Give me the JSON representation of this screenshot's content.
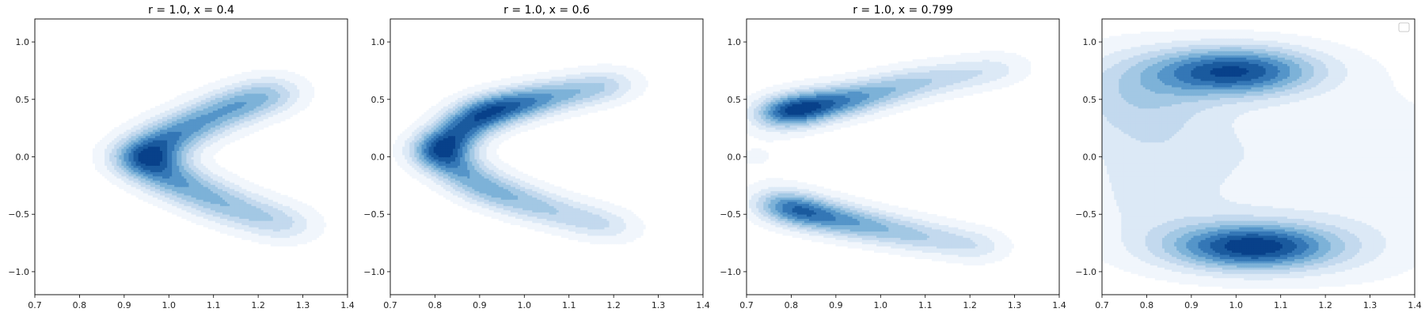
{
  "figure": {
    "background": "#ffffff",
    "colormap": [
      "#f1f6fc",
      "#dce9f6",
      "#c3d9ee",
      "#a3c8e4",
      "#7db2d8",
      "#5595c9",
      "#3477b6",
      "#1a5a9e",
      "#08418a"
    ]
  },
  "chart_data": [
    {
      "type": "kde-contour",
      "title": "r = 1.0, x = 0.4",
      "xlim": [
        0.7,
        1.4
      ],
      "ylim": [
        -1.2,
        1.2
      ],
      "xticks": [
        0.7,
        0.8,
        0.9,
        1.0,
        1.1,
        1.2,
        1.3,
        1.4
      ],
      "yticks": [
        -1.0,
        -0.5,
        0.0,
        0.5,
        1.0
      ],
      "xticklabels": [
        "0.7",
        "0.8",
        "0.9",
        "1.0",
        "1.1",
        "1.2",
        "1.3",
        "1.4"
      ],
      "yticklabels": [
        "−1.0",
        "−0.5",
        "0.0",
        "0.5",
        "1.0"
      ],
      "legend": false,
      "density_peaks": [
        {
          "path": [
            [
              0.93,
              0.0
            ],
            [
              1.02,
              0.22
            ],
            [
              1.13,
              0.42
            ],
            [
              1.22,
              0.54
            ],
            [
              1.26,
              0.6
            ]
          ],
          "sigma": 0.05,
          "weights": [
            1.0,
            0.85,
            0.7,
            0.4,
            0.15
          ]
        },
        {
          "path": [
            [
              0.93,
              0.0
            ],
            [
              1.02,
              -0.22
            ],
            [
              1.13,
              -0.42
            ],
            [
              1.24,
              -0.56
            ],
            [
              1.3,
              -0.63
            ]
          ],
          "sigma": 0.05,
          "weights": [
            1.0,
            0.75,
            0.6,
            0.35,
            0.15
          ]
        }
      ]
    },
    {
      "type": "kde-contour",
      "title": "r = 1.0, x = 0.6",
      "xlim": [
        0.7,
        1.4
      ],
      "ylim": [
        -1.2,
        1.2
      ],
      "xticks": [
        0.7,
        0.8,
        0.9,
        1.0,
        1.1,
        1.2,
        1.3,
        1.4
      ],
      "yticks": [
        -1.0,
        -0.5,
        0.0,
        0.5,
        1.0
      ],
      "xticklabels": [
        "0.7",
        "0.8",
        "0.9",
        "1.0",
        "1.1",
        "1.2",
        "1.3",
        "1.4"
      ],
      "yticklabels": [
        "−1.0",
        "−0.5",
        "0.0",
        "0.5",
        "1.0"
      ],
      "legend": false,
      "density_peaks": [
        {
          "path": [
            [
              0.8,
              0.05
            ],
            [
              0.9,
              0.38
            ],
            [
              1.02,
              0.5
            ],
            [
              1.15,
              0.6
            ],
            [
              1.24,
              0.66
            ]
          ],
          "sigma": 0.045,
          "weights": [
            1.0,
            0.95,
            0.6,
            0.35,
            0.12
          ]
        },
        {
          "path": [
            [
              0.8,
              0.05
            ],
            [
              0.9,
              -0.25
            ],
            [
              1.02,
              -0.42
            ],
            [
              1.15,
              -0.56
            ],
            [
              1.24,
              -0.65
            ]
          ],
          "sigma": 0.045,
          "weights": [
            0.8,
            0.55,
            0.4,
            0.28,
            0.1
          ]
        }
      ]
    },
    {
      "type": "kde-contour",
      "title": "r = 1.0, x = 0.799",
      "xlim": [
        0.7,
        1.4
      ],
      "ylim": [
        -1.2,
        1.2
      ],
      "xticks": [
        0.7,
        0.8,
        0.9,
        1.0,
        1.1,
        1.2,
        1.3,
        1.4
      ],
      "yticks": [
        -1.0,
        -0.5,
        0.0,
        0.5,
        1.0
      ],
      "xticklabels": [
        "0.7",
        "0.8",
        "0.9",
        "1.0",
        "1.1",
        "1.2",
        "1.3",
        "1.4"
      ],
      "yticklabels": [
        "−1.0",
        "−0.5",
        "0.0",
        "0.5",
        "1.0"
      ],
      "legend": false,
      "density_peaks": [
        {
          "path": [
            [
              0.75,
              0.36
            ],
            [
              0.83,
              0.43
            ],
            [
              0.95,
              0.52
            ],
            [
              1.08,
              0.65
            ],
            [
              1.22,
              0.74
            ],
            [
              1.32,
              0.8
            ]
          ],
          "sigma": 0.045,
          "weights": [
            0.6,
            1.0,
            0.7,
            0.5,
            0.3,
            0.1
          ]
        },
        {
          "path": [
            [
              0.75,
              -0.38
            ],
            [
              0.83,
              -0.48
            ],
            [
              0.95,
              -0.58
            ],
            [
              1.08,
              -0.68
            ],
            [
              1.2,
              -0.76
            ],
            [
              1.26,
              -0.8
            ]
          ],
          "sigma": 0.045,
          "weights": [
            0.5,
            0.85,
            0.65,
            0.45,
            0.25,
            0.1
          ]
        },
        {
          "path": [
            [
              0.72,
              0.0
            ]
          ],
          "sigma": 0.06,
          "weights": [
            0.08
          ]
        }
      ]
    },
    {
      "type": "kde-contour",
      "title": "",
      "xlim": [
        0.7,
        1.4
      ],
      "ylim": [
        -1.2,
        1.2
      ],
      "xticks": [
        0.7,
        0.8,
        0.9,
        1.0,
        1.1,
        1.2,
        1.3,
        1.4
      ],
      "yticks": [
        -1.0,
        -0.5,
        0.0,
        0.5,
        1.0
      ],
      "xticklabels": [
        "0.7",
        "0.8",
        "0.9",
        "1.0",
        "1.1",
        "1.2",
        "1.3",
        "1.4"
      ],
      "yticklabels": [
        "−1.0",
        "−0.5",
        "0.0",
        "0.5",
        "1.0"
      ],
      "legend": true,
      "legend_position": "top-right",
      "density_peaks": [
        {
          "path": [
            [
              1.0,
              0.75
            ]
          ],
          "sigma": 0.13,
          "sigma_y": 0.15,
          "weights": [
            1.0
          ]
        },
        {
          "path": [
            [
              1.04,
              -0.78
            ]
          ],
          "sigma": 0.13,
          "sigma_y": 0.14,
          "weights": [
            1.0
          ]
        },
        {
          "path": [
            [
              0.75,
              0.6
            ],
            [
              0.8,
              0.5
            ],
            [
              0.78,
              -0.6
            ],
            [
              1.35,
              -0.85
            ],
            [
              1.38,
              0.85
            ]
          ],
          "sigma": 0.12,
          "weights": [
            0.25,
            0.2,
            0.25,
            0.15,
            0.12
          ]
        },
        {
          "path": [
            [
              0.85,
              0.0
            ],
            [
              1.1,
              0.1
            ],
            [
              1.3,
              -0.2
            ]
          ],
          "sigma": 0.15,
          "weights": [
            0.1,
            0.08,
            0.08
          ]
        }
      ]
    }
  ]
}
